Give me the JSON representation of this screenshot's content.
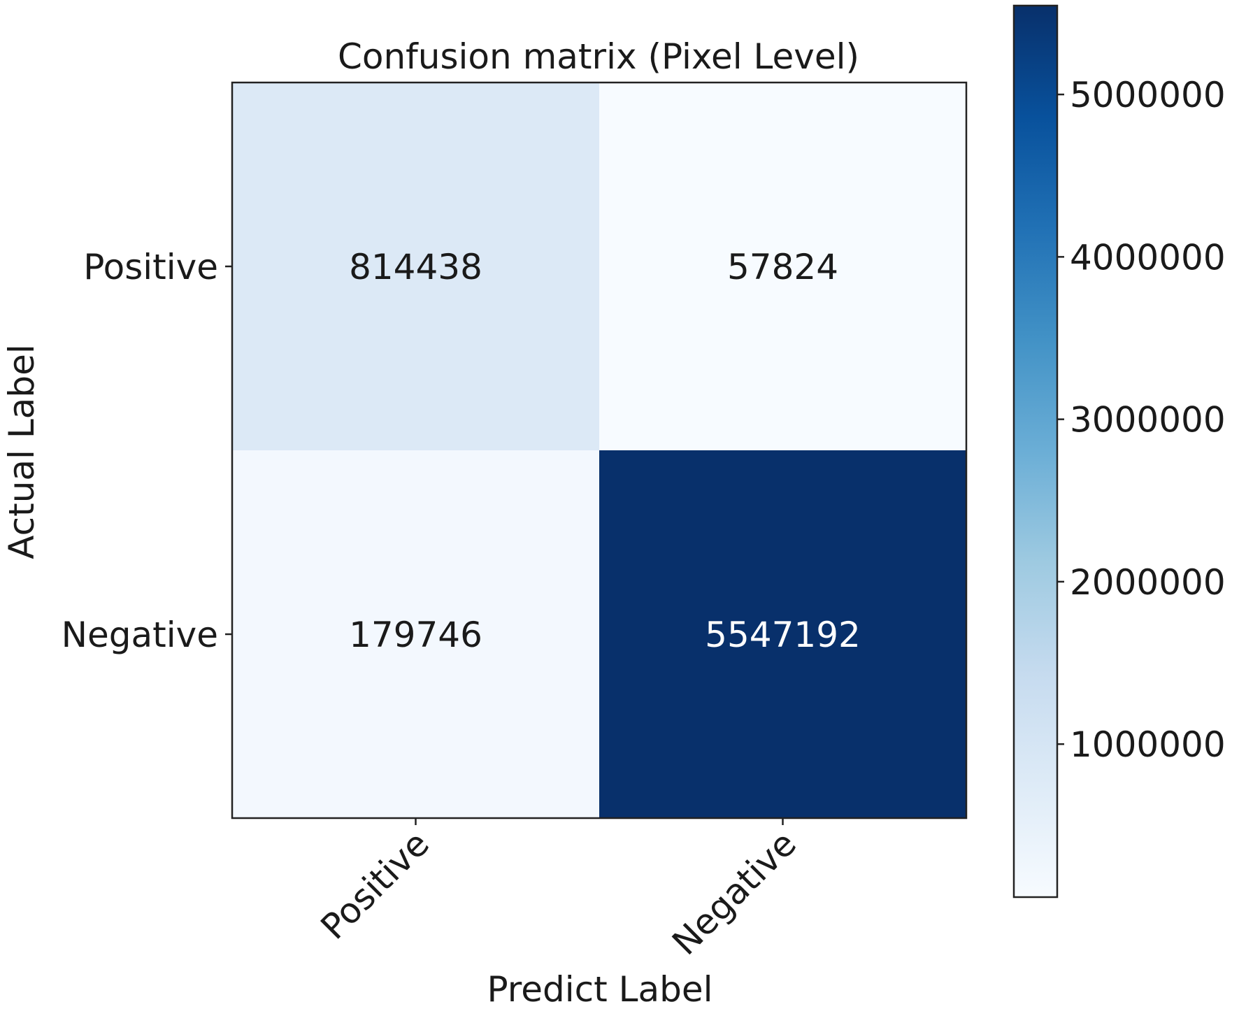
{
  "chart_data": {
    "type": "heatmap",
    "title": "Confusion matrix (Pixel Level)",
    "xlabel": "Predict Label",
    "ylabel": "Actual Label",
    "x_categories": [
      "Positive",
      "Negative"
    ],
    "y_categories": [
      "Positive",
      "Negative"
    ],
    "values": [
      [
        814438,
        57824
      ],
      [
        179746,
        5547192
      ]
    ],
    "colormap": "Blues",
    "colorbar": {
      "range": [
        57824,
        5547192
      ],
      "ticks": [
        1000000,
        2000000,
        3000000,
        4000000,
        5000000
      ],
      "tick_labels": [
        "1000000",
        "2000000",
        "3000000",
        "4000000",
        "5000000"
      ]
    },
    "grid": false
  }
}
